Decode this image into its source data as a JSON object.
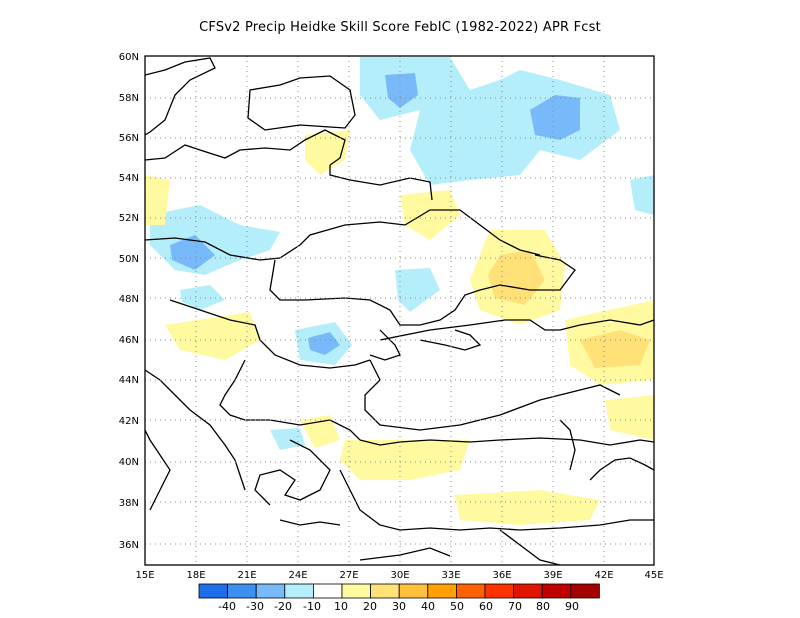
{
  "title": "CFSv2 Precip Heidke Skill Score FebIC (1982-2022) APR Fcst",
  "map": {
    "lon_ticks": [
      "15E",
      "18E",
      "21E",
      "24E",
      "27E",
      "30E",
      "33E",
      "36E",
      "39E",
      "42E",
      "45E"
    ],
    "lat_ticks": [
      "60N",
      "58N",
      "56N",
      "54N",
      "52N",
      "50N",
      "48N",
      "46N",
      "44N",
      "42N",
      "40N",
      "38N",
      "36N"
    ]
  },
  "colorbar": {
    "labels": [
      "-40",
      "-30",
      "-20",
      "-10",
      "10",
      "20",
      "30",
      "40",
      "50",
      "60",
      "70",
      "80",
      "90"
    ],
    "colors": [
      "#1e6eeb",
      "#3c91f0",
      "#78b9fa",
      "#b4eefa",
      "#ffffff",
      "#fffaa0",
      "#ffe178",
      "#ffc03c",
      "#ffa000",
      "#ff6000",
      "#ff3200",
      "#e11400",
      "#c00000",
      "#a50000"
    ]
  }
}
